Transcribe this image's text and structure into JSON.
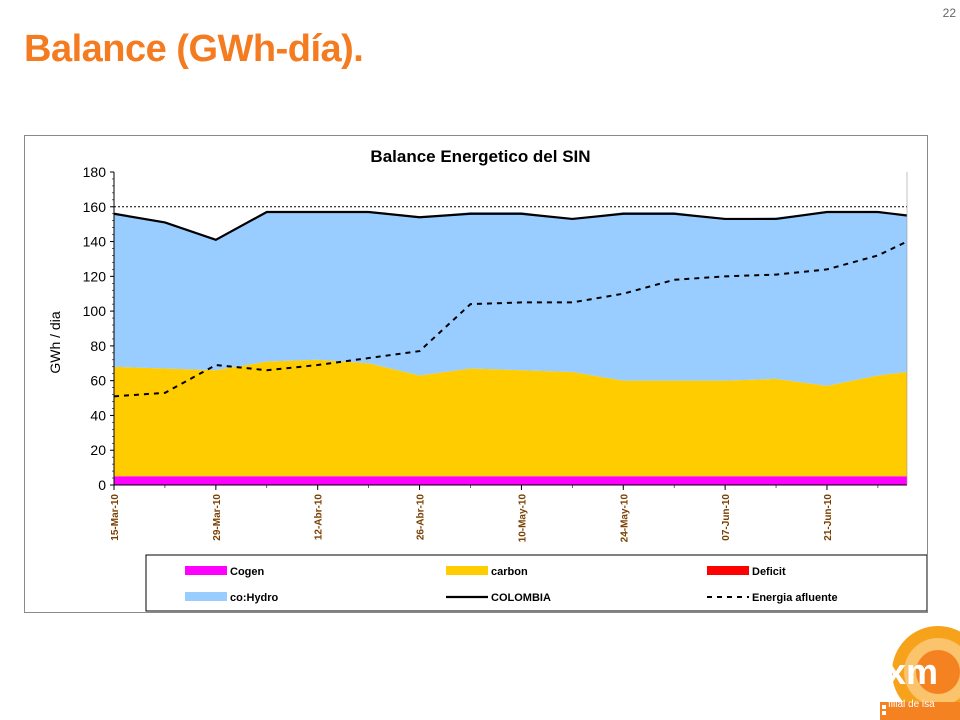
{
  "slide": {
    "number": "22",
    "title": "Balance (GWh-día)."
  },
  "footer": {
    "caption": "filial de isa"
  },
  "colors": {
    "title": "#F47B20",
    "cogen": "#FF00FF",
    "carbon": "#FFCC00",
    "deficit": "#FF0000",
    "hydro": "#99CCFF",
    "colombia": "#000000",
    "energia": "#000000"
  },
  "chart_data": {
    "type": "area",
    "title": "Balance Energetico del SIN",
    "ylabel": "GWh / dia",
    "xlabel": "",
    "ylim": [
      0,
      180
    ],
    "yticks": [
      0,
      20,
      40,
      60,
      80,
      100,
      120,
      140,
      160,
      180
    ],
    "xlim": [
      "2010-03-15",
      "2010-07-02"
    ],
    "xticks": [
      "15-Mar-10",
      "29-Mar-10",
      "12-Abr-10",
      "26-Abr-10",
      "10-May-10",
      "24-May-10",
      "07-Jun-10",
      "21-Jun-10"
    ],
    "reference_line": 160,
    "legend": {
      "placement": "bottom"
    },
    "x": [
      "2010-03-15",
      "2010-03-22",
      "2010-03-29",
      "2010-04-05",
      "2010-04-12",
      "2010-04-19",
      "2010-04-26",
      "2010-05-03",
      "2010-05-10",
      "2010-05-17",
      "2010-05-24",
      "2010-05-31",
      "2010-06-07",
      "2010-06-14",
      "2010-06-21",
      "2010-06-28",
      "2010-07-02"
    ],
    "series": [
      {
        "name": "Cogen",
        "kind": "stacked-area",
        "color": "#FF00FF",
        "values": [
          5,
          5,
          5,
          5,
          5,
          5,
          5,
          5,
          5,
          5,
          5,
          5,
          5,
          5,
          5,
          5,
          5
        ]
      },
      {
        "name": "carbon",
        "kind": "stacked-area",
        "color": "#FFCC00",
        "values": [
          63,
          62,
          61,
          66,
          67,
          65,
          58,
          62,
          61,
          60,
          55,
          55,
          55,
          56,
          52,
          58,
          60
        ]
      },
      {
        "name": "Deficit",
        "kind": "stacked-area",
        "color": "#FF0000",
        "values": [
          0,
          0,
          0,
          0,
          0,
          0,
          0,
          0,
          0,
          0,
          0,
          0,
          0,
          0,
          0,
          0,
          0
        ]
      },
      {
        "name": "co:Hydro",
        "kind": "stacked-area",
        "color": "#99CCFF",
        "values": [
          88,
          84,
          75,
          86,
          85,
          87,
          91,
          90,
          91,
          88,
          97,
          97,
          93,
          93,
          100,
          94,
          90
        ]
      },
      {
        "name": "COLOMBIA",
        "kind": "line",
        "color": "#000000",
        "values": [
          156,
          151,
          141,
          157,
          157,
          157,
          154,
          156,
          156,
          153,
          156,
          156,
          153,
          153,
          157,
          157,
          155
        ]
      },
      {
        "name": "Energia afluente",
        "kind": "dashed-line",
        "color": "#000000",
        "values": [
          51,
          53,
          69,
          66,
          69,
          73,
          77,
          104,
          105,
          105,
          110,
          118,
          120,
          121,
          124,
          132,
          140
        ]
      }
    ]
  }
}
